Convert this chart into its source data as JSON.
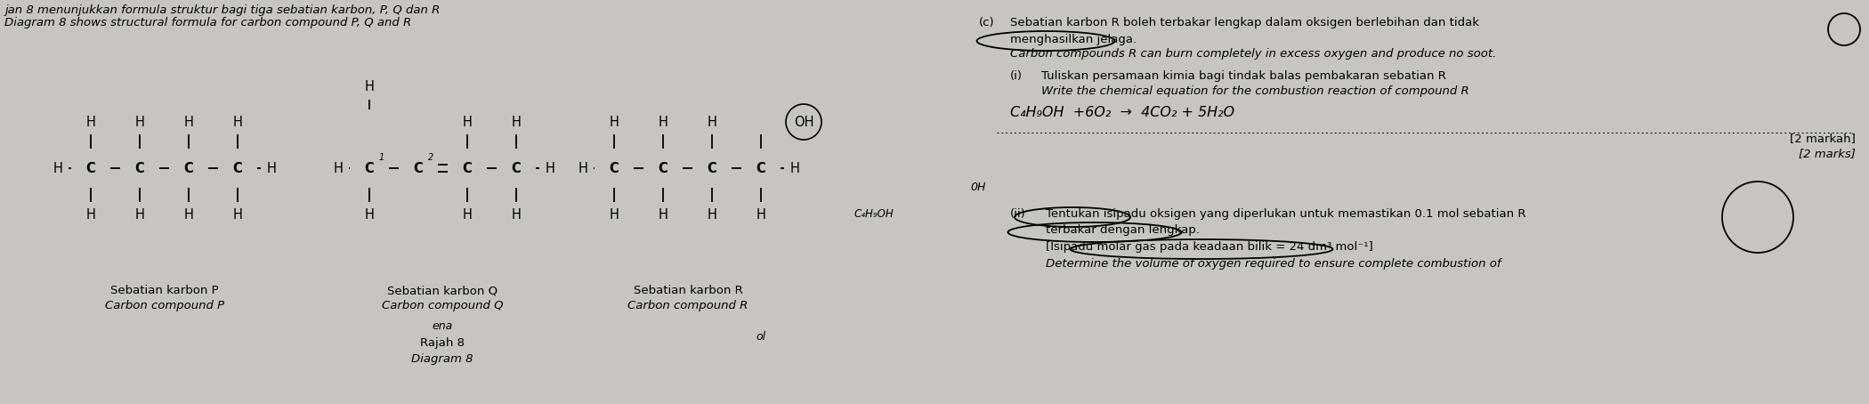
{
  "bg_color": "#c8c5c0",
  "title_line1": "jan 8 menunjukkan formula struktur bagi tiga sebatian karbon, P, Q dan R",
  "title_line2": "Diagram 8 shows structural formula for carbon compound P, Q and R",
  "compound_p_label1": "Sebatian karbon P",
  "compound_p_label2": "Carbon compound P",
  "compound_q_label1": "Sebatian karbon Q",
  "compound_q_label2": "Carbon compound Q",
  "compound_r_label1": "Sebatian karbon R",
  "compound_r_label2": "Carbon compound R",
  "rajah_label": "Rajah 8",
  "diagram_label": "Diagram 8",
  "ena_label": "ena",
  "ol_label": "ol",
  "c_prefix": "(c)",
  "c_label": "   Sebatian karbon R boleh terbakar lengkap dalam oksigen berlebihan dan tidak",
  "c_label2": "   menghasilkan jelaga.",
  "c_label_en": "   Carbon compounds R can burn completely in excess oxygen and produce no soot.",
  "i_prefix": "(i)",
  "i_label1": "    Tuliskan persamaan kimia bagi tindak balas pembakaran sebatian R",
  "i_label2": "    Write the chemical equation for the combustion reaction of compound R",
  "marks_ms": "[2 markah]",
  "marks_en": "[2 marks]",
  "ii_prefix": "(ii)",
  "ii_label1": "   Tentukan isipadu oksigen yang diperlukan untuk memastikan 0.1 mol sebatian R",
  "ii_label2": "   terbakar dengan lengkap.",
  "ii_label3": "   [Isipadu molar gas pada keadaan bilik = 24 dm³ mol⁻¹]",
  "ii_label4": "   Determine the volume of oxygen required to ensure complete combustion of",
  "handwritten_eq": "C₄H₉OH  +6O₂  →  4CO₂ + 5H₂O"
}
